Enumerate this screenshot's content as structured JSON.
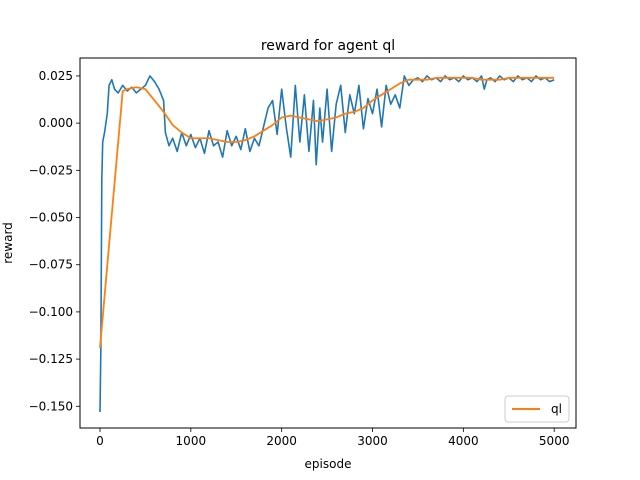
{
  "chart_data": {
    "type": "line",
    "title": "reward for agent ql",
    "xlabel": "episode",
    "ylabel": "reward",
    "xlim": [
      -220,
      5240
    ],
    "ylim": [
      -0.1615,
      0.0345
    ],
    "xticks": [
      0,
      1000,
      2000,
      3000,
      4000,
      5000
    ],
    "xtick_labels": [
      "0",
      "1000",
      "2000",
      "3000",
      "4000",
      "5000"
    ],
    "yticks": [
      -0.15,
      -0.125,
      -0.1,
      -0.075,
      -0.05,
      -0.025,
      0.0,
      0.025
    ],
    "ytick_labels": [
      "−0.150",
      "−0.125",
      "−0.100",
      "−0.075",
      "−0.050",
      "−0.025",
      "0.000",
      "0.025"
    ],
    "grid": false,
    "legend": {
      "position": "lower-right",
      "entries": [
        "ql"
      ]
    },
    "colors": {
      "raw": "#1f77b4",
      "smoothed": "#ff7f0e"
    },
    "series": [
      {
        "role": "raw",
        "x": [
          0,
          10,
          20,
          30,
          50,
          80,
          100,
          130,
          160,
          200,
          250,
          300,
          350,
          400,
          450,
          500,
          550,
          600,
          650,
          700,
          720,
          760,
          800,
          850,
          900,
          950,
          1000,
          1050,
          1100,
          1150,
          1200,
          1250,
          1300,
          1350,
          1400,
          1450,
          1500,
          1550,
          1600,
          1650,
          1700,
          1750,
          1800,
          1850,
          1900,
          1950,
          2000,
          2050,
          2100,
          2150,
          2200,
          2250,
          2300,
          2350,
          2380,
          2420,
          2450,
          2500,
          2550,
          2600,
          2650,
          2700,
          2750,
          2800,
          2850,
          2900,
          2950,
          3000,
          3050,
          3100,
          3150,
          3200,
          3250,
          3300,
          3350,
          3400,
          3450,
          3500,
          3550,
          3600,
          3650,
          3700,
          3750,
          3800,
          3850,
          3900,
          3950,
          4000,
          4050,
          4100,
          4150,
          4200,
          4230,
          4260,
          4300,
          4350,
          4400,
          4450,
          4500,
          4550,
          4600,
          4650,
          4700,
          4750,
          4800,
          4850,
          4900,
          4950,
          5000
        ],
        "y": [
          -0.153,
          -0.118,
          -0.03,
          -0.01,
          -0.005,
          0.005,
          0.02,
          0.023,
          0.018,
          0.016,
          0.02,
          0.017,
          0.019,
          0.016,
          0.018,
          0.02,
          0.025,
          0.022,
          0.018,
          0.012,
          -0.005,
          -0.012,
          -0.008,
          -0.015,
          -0.005,
          -0.012,
          -0.006,
          -0.013,
          -0.008,
          -0.016,
          -0.004,
          -0.012,
          -0.01,
          -0.018,
          -0.004,
          -0.012,
          -0.007,
          -0.014,
          -0.003,
          -0.015,
          -0.008,
          -0.012,
          -0.002,
          0.008,
          0.012,
          -0.006,
          0.018,
          -0.002,
          -0.018,
          0.02,
          -0.01,
          0.015,
          -0.015,
          0.012,
          -0.022,
          0.008,
          -0.01,
          0.018,
          -0.015,
          0.01,
          0.02,
          -0.005,
          0.015,
          0.005,
          0.02,
          -0.003,
          0.013,
          0.005,
          0.018,
          -0.002,
          0.02,
          0.01,
          0.015,
          0.008,
          0.025,
          0.02,
          0.023,
          0.024,
          0.022,
          0.025,
          0.023,
          0.024,
          0.022,
          0.025,
          0.023,
          0.024,
          0.022,
          0.025,
          0.023,
          0.024,
          0.022,
          0.025,
          0.018,
          0.023,
          0.024,
          0.022,
          0.025,
          0.023,
          0.024,
          0.022,
          0.025,
          0.023,
          0.024,
          0.022,
          0.025,
          0.023,
          0.024,
          0.022,
          0.023
        ]
      },
      {
        "name": "ql",
        "role": "smoothed",
        "x": [
          0,
          250,
          300,
          400,
          500,
          600,
          700,
          800,
          900,
          1000,
          1100,
          1200,
          1300,
          1400,
          1500,
          1600,
          1700,
          1800,
          1900,
          2000,
          2100,
          2200,
          2300,
          2400,
          2500,
          2600,
          2700,
          2800,
          2900,
          3000,
          3100,
          3200,
          3300,
          3400,
          3500,
          3600,
          3700,
          3800,
          3900,
          4000,
          4100,
          4200,
          4300,
          4400,
          4500,
          4600,
          4700,
          4800,
          4900,
          5000
        ],
        "y": [
          -0.119,
          0.017,
          0.018,
          0.019,
          0.018,
          0.012,
          0.006,
          -0.001,
          -0.005,
          -0.008,
          -0.008,
          -0.008,
          -0.009,
          -0.01,
          -0.01,
          -0.009,
          -0.007,
          -0.004,
          -0.001,
          0.003,
          0.004,
          0.003,
          0.002,
          0.001,
          0.002,
          0.003,
          0.005,
          0.006,
          0.008,
          0.012,
          0.015,
          0.018,
          0.021,
          0.023,
          0.023,
          0.023,
          0.024,
          0.024,
          0.024,
          0.024,
          0.024,
          0.023,
          0.023,
          0.023,
          0.024,
          0.024,
          0.024,
          0.024,
          0.024,
          0.024
        ]
      }
    ]
  }
}
